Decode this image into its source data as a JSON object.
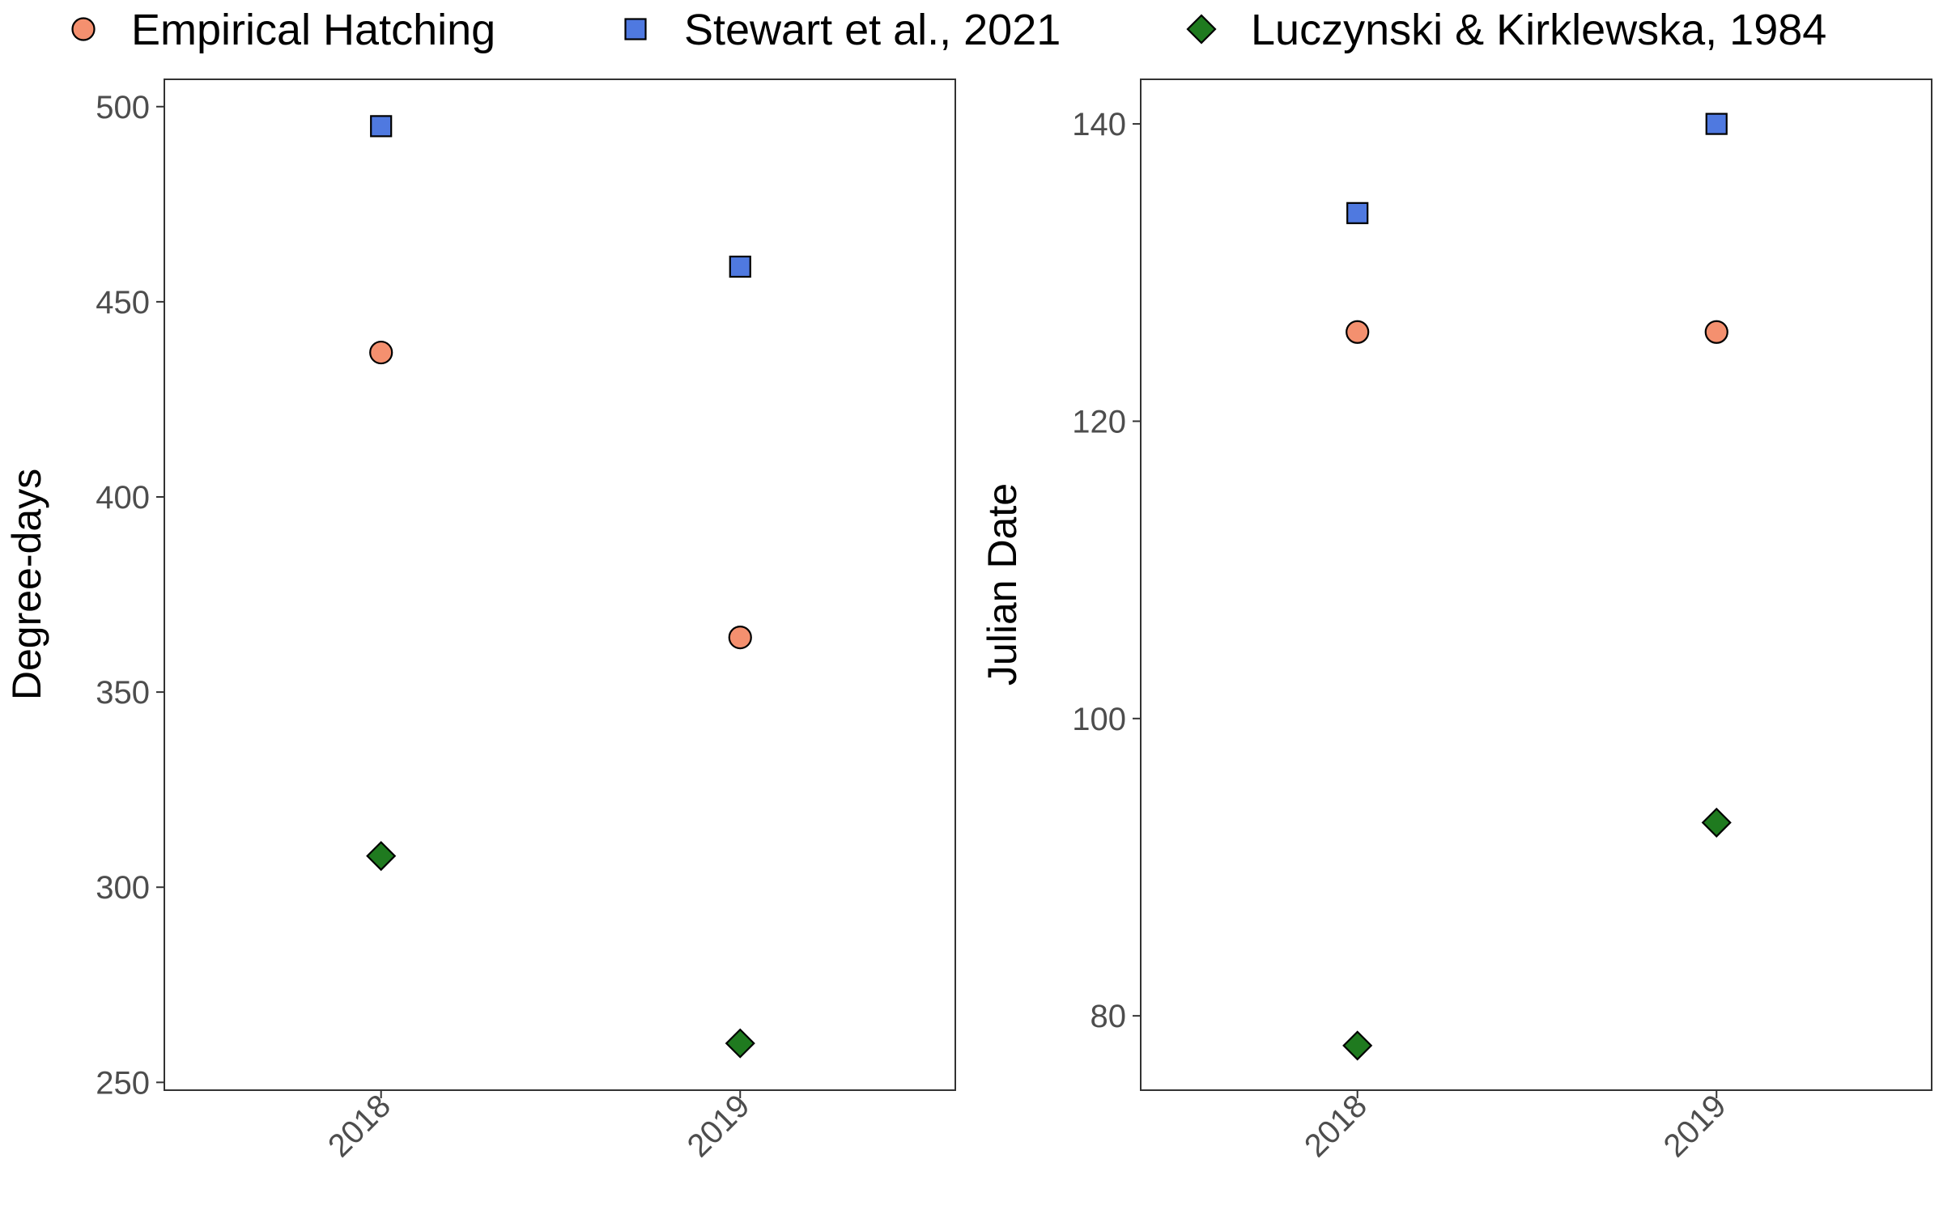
{
  "legend": {
    "entries": [
      {
        "label": "Empirical Hatching",
        "shape": "circle",
        "color": "#F4906F"
      },
      {
        "label": "Stewart et al., 2021",
        "shape": "square",
        "color": "#4F79E0"
      },
      {
        "label": "Luczynski & Kirklewska, 1984",
        "shape": "diamond",
        "color": "#1F7A1F"
      }
    ],
    "position": "top"
  },
  "chart_data": [
    {
      "type": "scatter",
      "categories": [
        "2018",
        "2019"
      ],
      "ylabel": "Degree-days",
      "xlabel": "",
      "ylim": [
        248,
        507
      ],
      "yticks": [
        250,
        300,
        350,
        400,
        450,
        500
      ],
      "grid": false,
      "series": [
        {
          "name": "Empirical Hatching",
          "values": [
            437,
            364
          ]
        },
        {
          "name": "Stewart et al., 2021",
          "values": [
            495,
            459
          ]
        },
        {
          "name": "Luczynski & Kirklewska, 1984",
          "values": [
            308,
            260
          ]
        }
      ]
    },
    {
      "type": "scatter",
      "categories": [
        "2018",
        "2019"
      ],
      "ylabel": "Julian Date",
      "xlabel": "",
      "ylim": [
        75,
        143
      ],
      "yticks": [
        80,
        100,
        120,
        140
      ],
      "grid": false,
      "series": [
        {
          "name": "Empirical Hatching",
          "values": [
            126,
            126
          ]
        },
        {
          "name": "Stewart et al., 2021",
          "values": [
            134,
            140
          ]
        },
        {
          "name": "Luczynski & Kirklewska, 1984",
          "values": [
            78,
            93
          ]
        }
      ]
    }
  ]
}
